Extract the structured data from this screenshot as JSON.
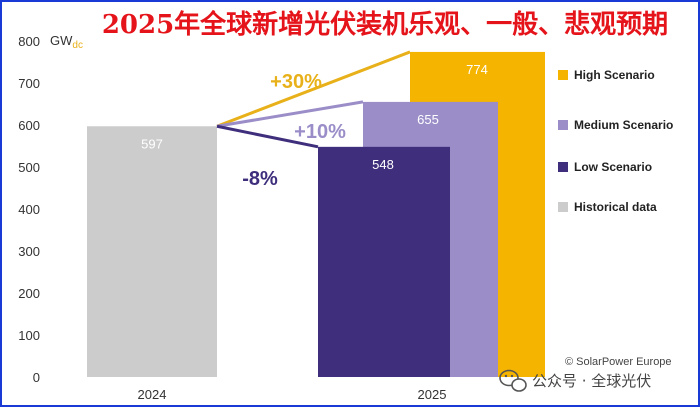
{
  "chart_data": {
    "type": "bar",
    "title": "2025年全球新增光伏装机乐观、一般、悲观预期",
    "unit_label": "GW",
    "unit_subscript": "dc",
    "ylim": [
      0,
      800
    ],
    "yticks": [
      0,
      100,
      200,
      300,
      400,
      500,
      600,
      700,
      800
    ],
    "categories": [
      "2024",
      "2025"
    ],
    "series": [
      {
        "name": "Historical data",
        "category": "2024",
        "value": 597,
        "label": "597",
        "color": "#cccccc"
      },
      {
        "name": "High Scenario",
        "category": "2025",
        "value": 774,
        "label": "774",
        "color": "#f4b400"
      },
      {
        "name": "Medium Scenario",
        "category": "2025",
        "value": 655,
        "label": "655",
        "color": "#9b8ec8"
      },
      {
        "name": "Low Scenario",
        "category": "2025",
        "value": 548,
        "label": "548",
        "color": "#3f2e7c"
      }
    ],
    "growth_annotations": [
      {
        "scenario": "High Scenario",
        "text": "+30%",
        "color": "#e8b11a"
      },
      {
        "scenario": "Medium Scenario",
        "text": "+10%",
        "color": "#9b8ec8"
      },
      {
        "scenario": "Low Scenario",
        "text": "-8%",
        "color": "#3f2e7c"
      }
    ],
    "legend": [
      {
        "label": "High Scenario",
        "color": "#f4b400"
      },
      {
        "label": "Medium Scenario",
        "color": "#9b8ec8"
      },
      {
        "label": "Low Scenario",
        "color": "#3f2e7c"
      },
      {
        "label": "Historical data",
        "color": "#cccccc"
      }
    ],
    "legend_position": "right",
    "source": "© SolarPower Europe",
    "watermark": "公众号 · 全球光伏",
    "title_color": "#e5141b"
  }
}
